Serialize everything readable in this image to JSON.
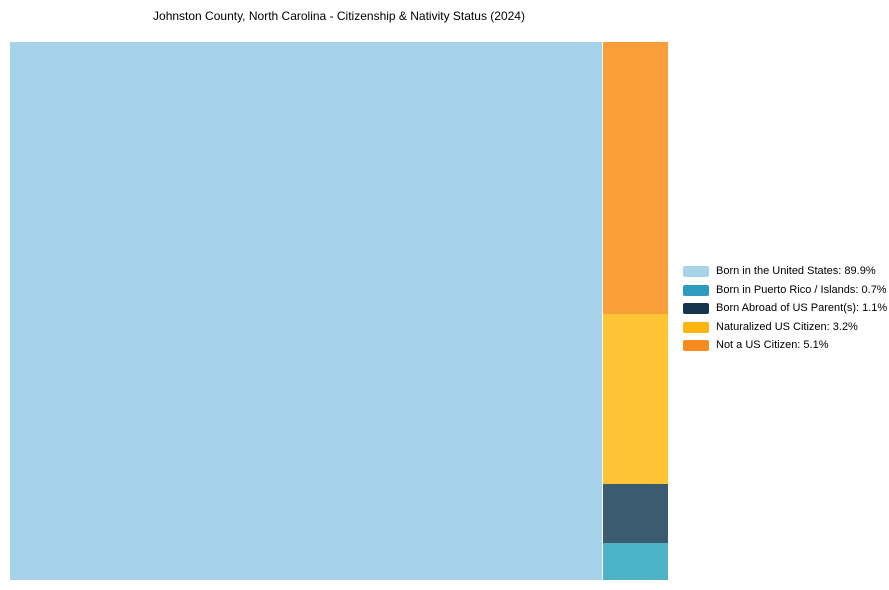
{
  "title": "Johnston County, North Carolina - Citizenship & Nativity Status (2024)",
  "colors": {
    "background": "#ffffff",
    "title_text": "#000000",
    "legend_text": "#000000"
  },
  "chart_data": {
    "type": "treemap",
    "title": "Johnston County, North Carolina - Citizenship & Nativity Status (2024)",
    "legend_position": "right",
    "unit": "%",
    "total": 100,
    "categories": [
      {
        "label": "Born in the United States",
        "value": 89.9,
        "display": "Born in the United States: 89.9%",
        "tile_color": "#a6d3e9",
        "legend_color": "#a8d2e8"
      },
      {
        "label": "Born in Puerto Rico / Islands",
        "value": 0.7,
        "display": "Born in Puerto Rico / Islands: 0.7%",
        "tile_color": "#4cb3c6",
        "legend_color": "#2b9cbe"
      },
      {
        "label": "Born Abroad of US Parent(s)",
        "value": 1.1,
        "display": "Born Abroad of US Parent(s): 1.1%",
        "tile_color": "#3a5b70",
        "legend_color": "#14354d"
      },
      {
        "label": "Naturalized US Citizen",
        "value": 3.2,
        "display": "Naturalized US Citizen: 3.2%",
        "tile_color": "#fec433",
        "legend_color": "#feb511"
      },
      {
        "label": "Not a US Citizen",
        "value": 5.1,
        "display": "Not a US Citizen: 5.1%",
        "tile_color": "#f99e38",
        "legend_color": "#f88b20"
      }
    ]
  }
}
